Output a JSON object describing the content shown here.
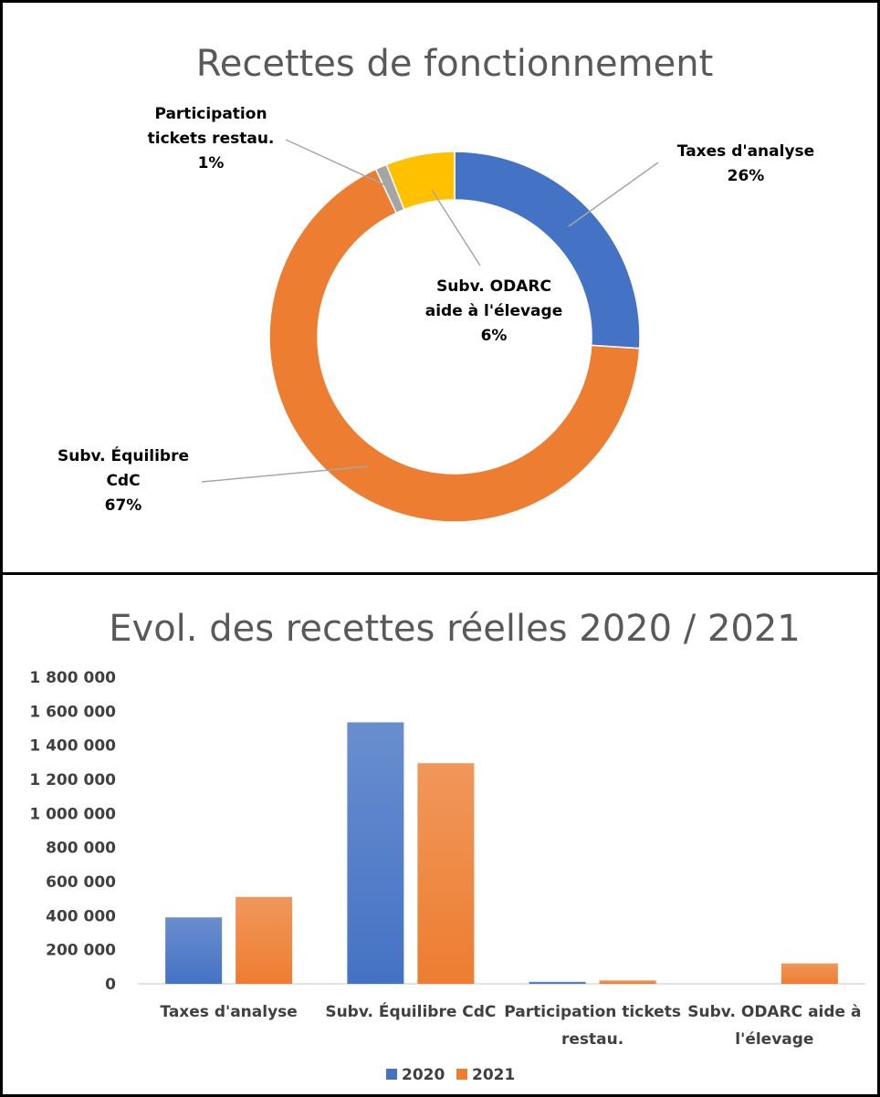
{
  "donut": {
    "chart_data": {
      "type": "pie",
      "title": "Recettes de fonctionnement",
      "slices": [
        {
          "label": "Taxes d'analyse",
          "value": 26,
          "percent_label": "26%",
          "color": "#4472C4"
        },
        {
          "label": "Subv. Équilibre CdC",
          "value": 67,
          "percent_label": "67%",
          "color": "#ED7D31"
        },
        {
          "label": "Participation tickets restau.",
          "value": 1,
          "percent_label": "1%",
          "color": "#A5A5A5"
        },
        {
          "label": "Subv. ODARC aide à l'élevage",
          "value": 6,
          "percent_label": "6%",
          "color": "#FFC000"
        }
      ],
      "label_lines": [
        {
          "slice": 0,
          "lines": [
            "Taxes d'analyse",
            "26%"
          ]
        },
        {
          "slice": 1,
          "lines": [
            "Subv. Équilibre",
            "CdC",
            "67%"
          ]
        },
        {
          "slice": 2,
          "lines": [
            "Participation",
            "tickets restau.",
            "1%"
          ]
        },
        {
          "slice": 3,
          "lines": [
            "Subv. ODARC",
            "aide à l'élevage",
            "6%"
          ]
        }
      ]
    }
  },
  "bars": {
    "chart_data": {
      "type": "bar",
      "title": "Evol. des recettes réelles 2020 / 2021",
      "categories": [
        "Taxes d'analyse",
        "Subv. Équilibre CdC",
        "Participation tickets restau.",
        "Subv. ODARC aide à l'élevage"
      ],
      "category_lines": [
        [
          "Taxes d'analyse"
        ],
        [
          "Subv. Équilibre CdC"
        ],
        [
          "Participation tickets",
          "restau."
        ],
        [
          "Subv. ODARC aide à",
          "l'élevage"
        ]
      ],
      "series": [
        {
          "name": "2020",
          "values": [
            390000,
            1535000,
            12000,
            0
          ],
          "color": "#4472C4"
        },
        {
          "name": "2021",
          "values": [
            510000,
            1295000,
            20000,
            120000
          ],
          "color": "#ED7D31"
        }
      ],
      "ylim": [
        0,
        1800000
      ],
      "yticks": [
        0,
        200000,
        400000,
        600000,
        800000,
        1000000,
        1200000,
        1400000,
        1600000,
        1800000
      ],
      "ytick_labels": [
        "0",
        "200 000",
        "400 000",
        "600 000",
        "800 000",
        "1 000 000",
        "1 200 000",
        "1 400 000",
        "1 600 000",
        "1 800 000"
      ],
      "legend_position": "bottom",
      "grid": false
    }
  }
}
